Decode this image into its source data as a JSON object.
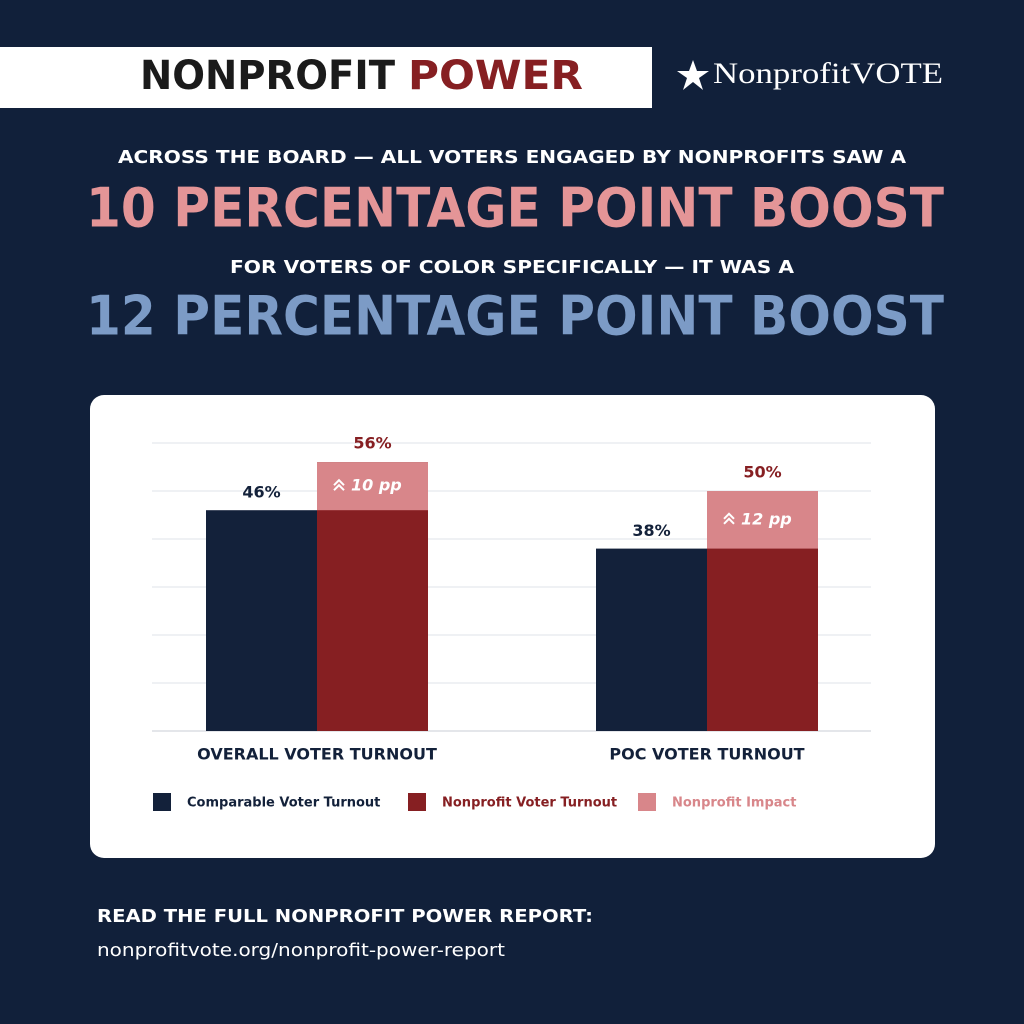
{
  "header": {
    "title_part1": "NONPROFIT",
    "title_part2": "POWER",
    "logo": "NonprofitVOTE"
  },
  "headline": {
    "line1": "ACROSS THE BOARD — ALL VOTERS ENGAGED BY NONPROFITS SAW A",
    "line2": "10 PERCENTAGE POINT BOOST",
    "line3": "FOR VOTERS OF COLOR SPECIFICALLY — IT WAS A",
    "line4": "12 PERCENTAGE POINT BOOST"
  },
  "chart_data": {
    "type": "bar",
    "categories": [
      "OVERALL VOTER TURNOUT",
      "POC VOTER TURNOUT"
    ],
    "series": [
      {
        "name": "Comparable Voter Turnout",
        "color": "#13213a",
        "values": [
          46,
          38
        ],
        "value_labels": [
          "46%",
          "38%"
        ]
      },
      {
        "name": "Nonprofit Voter Turnout",
        "color": "#861f22",
        "values": [
          56,
          50
        ],
        "value_labels": [
          "56%",
          "50%"
        ]
      },
      {
        "name": "Nonprofit Impact",
        "color": "#d8868a",
        "values": [
          10,
          12
        ],
        "value_labels": [
          "10 pp",
          "12 pp"
        ]
      }
    ],
    "ylim": [
      0,
      60
    ],
    "yticks": [
      0,
      10,
      20,
      30,
      40,
      50,
      60
    ],
    "grid": true
  },
  "footer": {
    "heading": "READ THE FULL NONPROFIT POWER REPORT:",
    "url": "nonprofitvote.org/nonprofit-power-report"
  }
}
